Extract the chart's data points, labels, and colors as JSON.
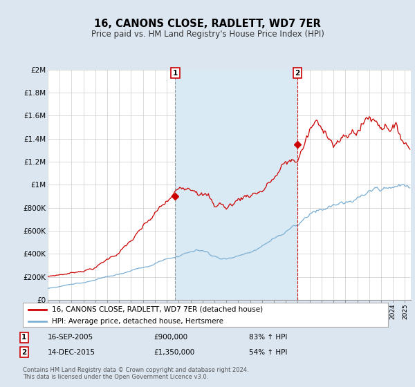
{
  "title": "16, CANONS CLOSE, RADLETT, WD7 7ER",
  "subtitle": "Price paid vs. HM Land Registry's House Price Index (HPI)",
  "legend_line1": "16, CANONS CLOSE, RADLETT, WD7 7ER (detached house)",
  "legend_line2": "HPI: Average price, detached house, Hertsmere",
  "sale1_label": "1",
  "sale1_date": "16-SEP-2005",
  "sale1_price": "£900,000",
  "sale1_pct": "83% ↑ HPI",
  "sale1_year": 2005.71,
  "sale1_value": 900000,
  "sale2_label": "2",
  "sale2_date": "14-DEC-2015",
  "sale2_price": "£1,350,000",
  "sale2_pct": "54% ↑ HPI",
  "sale2_year": 2015.96,
  "sale2_value": 1350000,
  "red_color": "#cc0000",
  "blue_color": "#7bafd4",
  "shade_color": "#daeaf5",
  "background_color": "#dce6f1",
  "plot_bg_color": "#ffffff",
  "grid_color": "#cccccc",
  "ylim": [
    0,
    2000000
  ],
  "xlim_start": 1995.0,
  "xlim_end": 2025.5,
  "footnote": "Contains HM Land Registry data © Crown copyright and database right 2024.\nThis data is licensed under the Open Government Licence v3.0."
}
